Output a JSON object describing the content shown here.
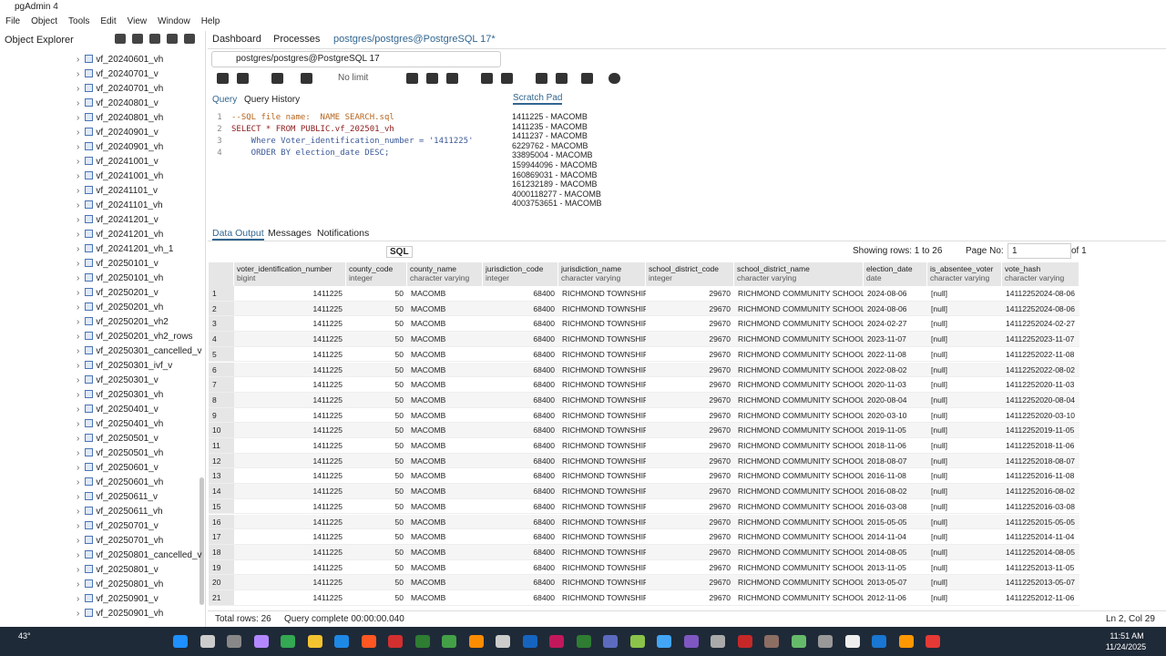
{
  "window": {
    "title": "pgAdmin 4",
    "menu": [
      "File",
      "Object",
      "Tools",
      "Edit",
      "View",
      "Window",
      "Help"
    ]
  },
  "explorer": {
    "title": "Object Explorer",
    "items": [
      "vf_20240601_vh",
      "vf_20240701_v",
      "vf_20240701_vh",
      "vf_20240801_v",
      "vf_20240801_vh",
      "vf_20240901_v",
      "vf_20240901_vh",
      "vf_20241001_v",
      "vf_20241001_vh",
      "vf_20241101_v",
      "vf_20241101_vh",
      "vf_20241201_v",
      "vf_20241201_vh",
      "vf_20241201_vh_1",
      "vf_20250101_v",
      "vf_20250101_vh",
      "vf_20250201_v",
      "vf_20250201_vh",
      "vf_20250201_vh2",
      "vf_20250201_vh2_rows",
      "vf_20250301_cancelled_v",
      "vf_20250301_ivf_v",
      "vf_20250301_v",
      "vf_20250301_vh",
      "vf_20250401_v",
      "vf_20250401_vh",
      "vf_20250501_v",
      "vf_20250501_vh",
      "vf_20250601_v",
      "vf_20250601_vh",
      "vf_20250611_v",
      "vf_20250611_vh",
      "vf_20250701_v",
      "vf_20250701_vh",
      "vf_20250801_cancelled_v",
      "vf_20250801_v",
      "vf_20250801_vh",
      "vf_20250901_v",
      "vf_20250901_vh"
    ]
  },
  "tabs": [
    "Dashboard",
    "Processes",
    "postgres/postgres@PostgreSQL 17*"
  ],
  "connection": "postgres/postgres@PostgreSQL 17",
  "row_limit": "No limit",
  "query_tabs": [
    "Query",
    "Query History"
  ],
  "scratch_pad": {
    "title": "Scratch Pad",
    "lines": [
      "1411225 - MACOMB",
      "1411235 - MACOMB",
      "1411237 - MACOMB",
      "6229762 - MACOMB",
      "33895004 - MACOMB",
      "159944096 - MACOMB",
      "160869031 - MACOMB",
      "161232189 - MACOMB",
      "4000118277 - MACOMB",
      "4003753651 - MACOMB"
    ]
  },
  "sql": [
    {
      "n": "1",
      "text": "--SQL file name:  NAME SEARCH.sql"
    },
    {
      "n": "2",
      "text": "SELECT * FROM PUBLIC.vf_202501_vh"
    },
    {
      "n": "3",
      "text": "    Where Voter_identification_number = '1411225'"
    },
    {
      "n": "4",
      "text": "    ORDER BY election_date DESC;"
    }
  ],
  "output_tabs": [
    "Data Output",
    "Messages",
    "Notifications"
  ],
  "grid_bar": {
    "sql_button": "SQL",
    "showing": "Showing rows: 1 to 26",
    "page_label": "Page No:",
    "page": "1",
    "page_of": "of 1"
  },
  "columns": [
    {
      "name": "voter_identification_number",
      "type": "bigint"
    },
    {
      "name": "county_code",
      "type": "integer"
    },
    {
      "name": "county_name",
      "type": "character varying"
    },
    {
      "name": "jurisdiction_code",
      "type": "integer"
    },
    {
      "name": "jurisdiction_name",
      "type": "character varying"
    },
    {
      "name": "school_district_code",
      "type": "integer"
    },
    {
      "name": "school_district_name",
      "type": "character varying"
    },
    {
      "name": "election_date",
      "type": "date"
    },
    {
      "name": "is_absentee_voter",
      "type": "character varying"
    },
    {
      "name": "vote_hash",
      "type": "character varying"
    }
  ],
  "rows": [
    [
      "1",
      "1411225",
      "50",
      "MACOMB",
      "68400",
      "RICHMOND TOWNSHIP",
      "29670",
      "RICHMOND COMMUNITY SCHOOLS",
      "2024-08-06",
      "[null]",
      "14112252024-08-06"
    ],
    [
      "2",
      "1411225",
      "50",
      "MACOMB",
      "68400",
      "RICHMOND TOWNSHIP",
      "29670",
      "RICHMOND COMMUNITY SCHOOLS",
      "2024-08-06",
      "[null]",
      "14112252024-08-06"
    ],
    [
      "3",
      "1411225",
      "50",
      "MACOMB",
      "68400",
      "RICHMOND TOWNSHIP",
      "29670",
      "RICHMOND COMMUNITY SCHOOLS",
      "2024-02-27",
      "[null]",
      "14112252024-02-27"
    ],
    [
      "4",
      "1411225",
      "50",
      "MACOMB",
      "68400",
      "RICHMOND TOWNSHIP",
      "29670",
      "RICHMOND COMMUNITY SCHOOLS",
      "2023-11-07",
      "[null]",
      "14112252023-11-07"
    ],
    [
      "5",
      "1411225",
      "50",
      "MACOMB",
      "68400",
      "RICHMOND TOWNSHIP",
      "29670",
      "RICHMOND COMMUNITY SCHOOLS",
      "2022-11-08",
      "[null]",
      "14112252022-11-08"
    ],
    [
      "6",
      "1411225",
      "50",
      "MACOMB",
      "68400",
      "RICHMOND TOWNSHIP",
      "29670",
      "RICHMOND COMMUNITY SCHOOLS",
      "2022-08-02",
      "[null]",
      "14112252022-08-02"
    ],
    [
      "7",
      "1411225",
      "50",
      "MACOMB",
      "68400",
      "RICHMOND TOWNSHIP",
      "29670",
      "RICHMOND COMMUNITY SCHOOLS",
      "2020-11-03",
      "[null]",
      "14112252020-11-03"
    ],
    [
      "8",
      "1411225",
      "50",
      "MACOMB",
      "68400",
      "RICHMOND TOWNSHIP",
      "29670",
      "RICHMOND COMMUNITY SCHOOLS",
      "2020-08-04",
      "[null]",
      "14112252020-08-04"
    ],
    [
      "9",
      "1411225",
      "50",
      "MACOMB",
      "68400",
      "RICHMOND TOWNSHIP",
      "29670",
      "RICHMOND COMMUNITY SCHOOLS",
      "2020-03-10",
      "[null]",
      "14112252020-03-10"
    ],
    [
      "10",
      "1411225",
      "50",
      "MACOMB",
      "68400",
      "RICHMOND TOWNSHIP",
      "29670",
      "RICHMOND COMMUNITY SCHOOLS",
      "2019-11-05",
      "[null]",
      "14112252019-11-05"
    ],
    [
      "11",
      "1411225",
      "50",
      "MACOMB",
      "68400",
      "RICHMOND TOWNSHIP",
      "29670",
      "RICHMOND COMMUNITY SCHOOLS",
      "2018-11-06",
      "[null]",
      "14112252018-11-06"
    ],
    [
      "12",
      "1411225",
      "50",
      "MACOMB",
      "68400",
      "RICHMOND TOWNSHIP",
      "29670",
      "RICHMOND COMMUNITY SCHOOLS",
      "2018-08-07",
      "[null]",
      "14112252018-08-07"
    ],
    [
      "13",
      "1411225",
      "50",
      "MACOMB",
      "68400",
      "RICHMOND TOWNSHIP",
      "29670",
      "RICHMOND COMMUNITY SCHOOLS",
      "2016-11-08",
      "[null]",
      "14112252016-11-08"
    ],
    [
      "14",
      "1411225",
      "50",
      "MACOMB",
      "68400",
      "RICHMOND TOWNSHIP",
      "29670",
      "RICHMOND COMMUNITY SCHOOLS",
      "2016-08-02",
      "[null]",
      "14112252016-08-02"
    ],
    [
      "15",
      "1411225",
      "50",
      "MACOMB",
      "68400",
      "RICHMOND TOWNSHIP",
      "29670",
      "RICHMOND COMMUNITY SCHOOLS",
      "2016-03-08",
      "[null]",
      "14112252016-03-08"
    ],
    [
      "16",
      "1411225",
      "50",
      "MACOMB",
      "68400",
      "RICHMOND TOWNSHIP",
      "29670",
      "RICHMOND COMMUNITY SCHOOLS",
      "2015-05-05",
      "[null]",
      "14112252015-05-05"
    ],
    [
      "17",
      "1411225",
      "50",
      "MACOMB",
      "68400",
      "RICHMOND TOWNSHIP",
      "29670",
      "RICHMOND COMMUNITY SCHOOLS",
      "2014-11-04",
      "[null]",
      "14112252014-11-04"
    ],
    [
      "18",
      "1411225",
      "50",
      "MACOMB",
      "68400",
      "RICHMOND TOWNSHIP",
      "29670",
      "RICHMOND COMMUNITY SCHOOLS",
      "2014-08-05",
      "[null]",
      "14112252014-08-05"
    ],
    [
      "19",
      "1411225",
      "50",
      "MACOMB",
      "68400",
      "RICHMOND TOWNSHIP",
      "29670",
      "RICHMOND COMMUNITY SCHOOLS",
      "2013-11-05",
      "[null]",
      "14112252013-11-05"
    ],
    [
      "20",
      "1411225",
      "50",
      "MACOMB",
      "68400",
      "RICHMOND TOWNSHIP",
      "29670",
      "RICHMOND COMMUNITY SCHOOLS",
      "2013-05-07",
      "[null]",
      "14112252013-05-07"
    ],
    [
      "21",
      "1411225",
      "50",
      "MACOMB",
      "68400",
      "RICHMOND TOWNSHIP",
      "29670",
      "RICHMOND COMMUNITY SCHOOLS",
      "2012-11-06",
      "[null]",
      "14112252012-11-06"
    ]
  ],
  "status": {
    "total": "Total rows: 26",
    "query": "Query complete 00:00:00.040",
    "cursor": "Ln 2, Col 29"
  },
  "taskbar": {
    "weather": "43°",
    "time": "11:51 AM",
    "date": "11/24/2025"
  }
}
